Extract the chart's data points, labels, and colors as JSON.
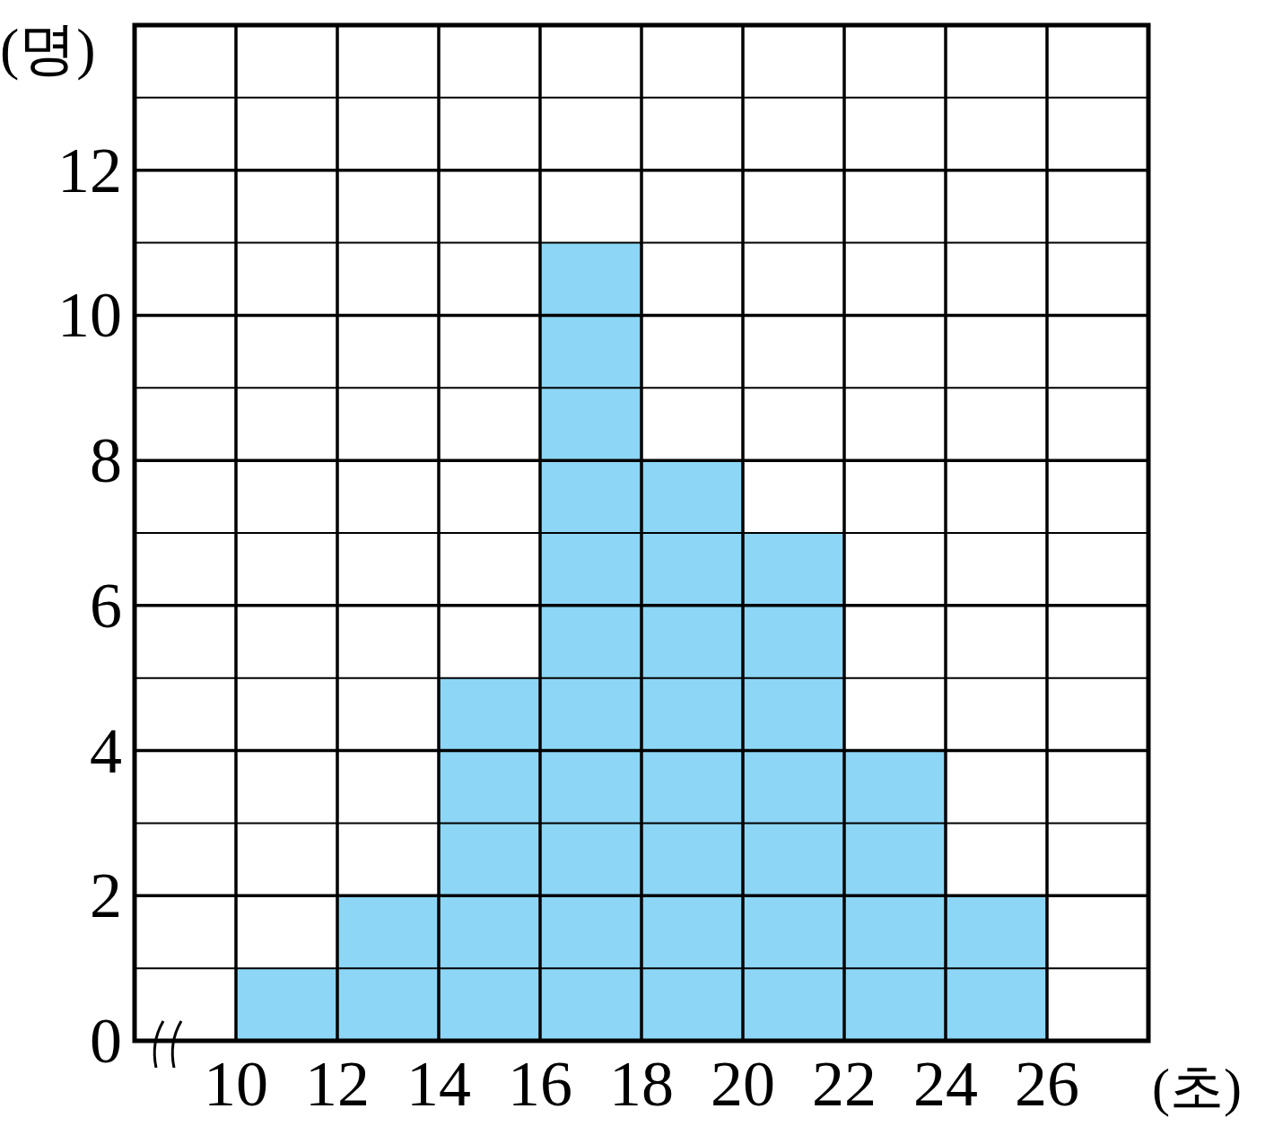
{
  "chart_data": {
    "type": "histogram",
    "xlabel": "(초)",
    "ylabel": "(명)",
    "bins": [
      10,
      12,
      14,
      16,
      18,
      20,
      22,
      24,
      26
    ],
    "values": [
      1,
      2,
      5,
      11,
      8,
      7,
      4,
      2
    ],
    "color": "#8dd6f5",
    "xlim": [
      8,
      28
    ],
    "xticks": [
      10,
      12,
      14,
      16,
      18,
      20,
      22,
      24,
      26
    ],
    "ylim": [
      0,
      14
    ],
    "yticks": [
      0,
      {
        "value": 1,
        "label": null
      },
      2,
      {
        "value": 3,
        "label": null
      },
      4,
      {
        "value": 5,
        "label": null
      },
      6,
      {
        "value": 7,
        "label": null
      },
      8,
      {
        "value": 9,
        "label": null
      },
      10,
      {
        "value": 11,
        "label": null
      },
      12,
      {
        "value": 13,
        "label": null
      }
    ],
    "grid": true
  }
}
